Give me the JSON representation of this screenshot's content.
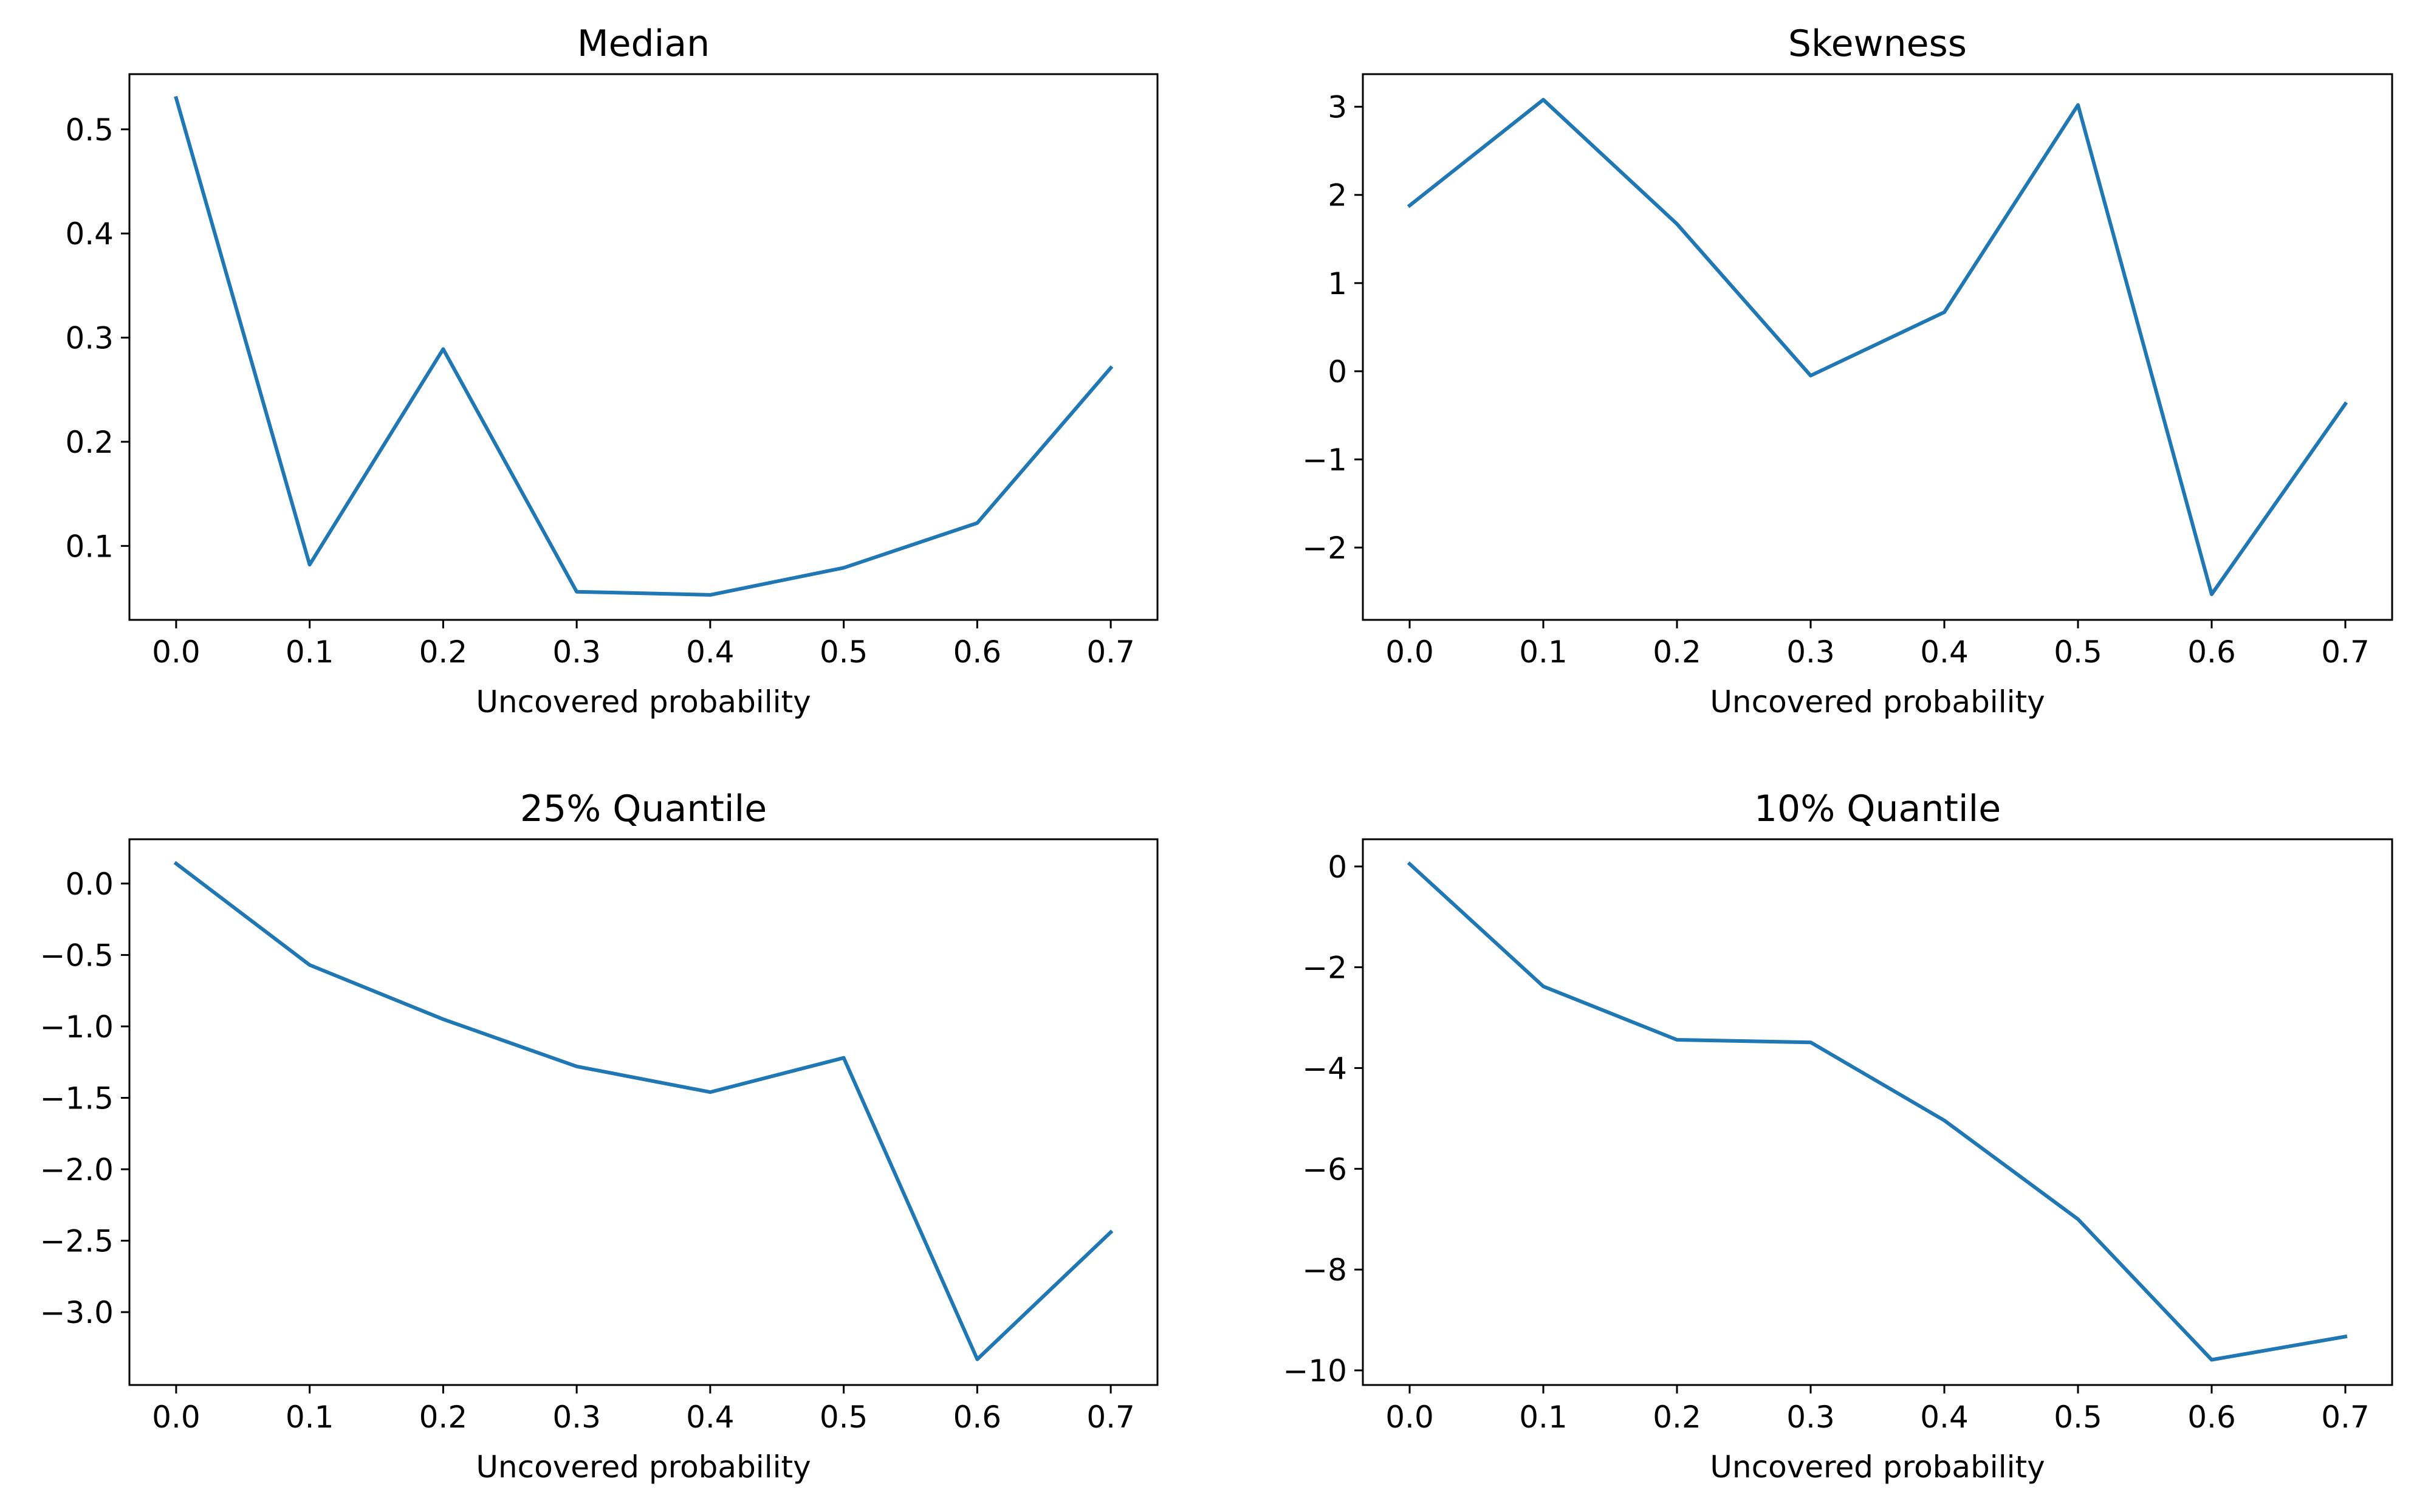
{
  "colors": {
    "line": "#1f77b4",
    "axes": "#000000",
    "background": "#ffffff"
  },
  "chart_data": [
    {
      "type": "line",
      "title": "Median",
      "xlabel": "Uncovered probability",
      "ylabel": "",
      "grid": false,
      "x": [
        0.0,
        0.1,
        0.2,
        0.3,
        0.4,
        0.5,
        0.6,
        0.7
      ],
      "x_ticks": [
        "0.0",
        "0.1",
        "0.2",
        "0.3",
        "0.4",
        "0.5",
        "0.6",
        "0.7"
      ],
      "xlim": [
        -0.035,
        0.735
      ],
      "y_ticks": [
        "0.1",
        "0.2",
        "0.3",
        "0.4",
        "0.5"
      ],
      "ylim": [
        0.029,
        0.553
      ],
      "series": [
        {
          "values": [
            0.53,
            0.082,
            0.289,
            0.056,
            0.053,
            0.079,
            0.122,
            0.271
          ]
        }
      ]
    },
    {
      "type": "line",
      "title": "Skewness",
      "xlabel": "Uncovered probability",
      "ylabel": "",
      "grid": false,
      "x": [
        0.0,
        0.1,
        0.2,
        0.3,
        0.4,
        0.5,
        0.6,
        0.7
      ],
      "x_ticks": [
        "0.0",
        "0.1",
        "0.2",
        "0.3",
        "0.4",
        "0.5",
        "0.6",
        "0.7"
      ],
      "xlim": [
        -0.035,
        0.735
      ],
      "y_ticks": [
        "−2",
        "−1",
        "0",
        "1",
        "2",
        "3"
      ],
      "ylim": [
        -2.82,
        3.37
      ],
      "series": [
        {
          "values": [
            1.88,
            3.08,
            1.67,
            -0.05,
            0.67,
            3.02,
            -2.53,
            -0.37
          ]
        }
      ]
    },
    {
      "type": "line",
      "title": "25% Quantile",
      "xlabel": "Uncovered probability",
      "ylabel": "",
      "grid": false,
      "x": [
        0.0,
        0.1,
        0.2,
        0.3,
        0.4,
        0.5,
        0.6,
        0.7
      ],
      "x_ticks": [
        "0.0",
        "0.1",
        "0.2",
        "0.3",
        "0.4",
        "0.5",
        "0.6",
        "0.7"
      ],
      "xlim": [
        -0.035,
        0.735
      ],
      "y_ticks": [
        "−3.0",
        "−2.5",
        "−2.0",
        "−1.5",
        "−1.0",
        "−0.5",
        "0.0"
      ],
      "ylim": [
        -3.51,
        0.31
      ],
      "series": [
        {
          "values": [
            0.14,
            -0.57,
            -0.95,
            -1.28,
            -1.46,
            -1.22,
            -3.33,
            -2.44
          ]
        }
      ]
    },
    {
      "type": "line",
      "title": "10% Quantile",
      "xlabel": "Uncovered probability",
      "ylabel": "",
      "grid": false,
      "x": [
        0.0,
        0.1,
        0.2,
        0.3,
        0.4,
        0.5,
        0.6,
        0.7
      ],
      "x_ticks": [
        "0.0",
        "0.1",
        "0.2",
        "0.3",
        "0.4",
        "0.5",
        "0.6",
        "0.7"
      ],
      "xlim": [
        -0.035,
        0.735
      ],
      "y_ticks": [
        "−10",
        "−8",
        "−6",
        "−4",
        "−2",
        "0"
      ],
      "ylim": [
        -10.29,
        0.54
      ],
      "series": [
        {
          "values": [
            0.05,
            -2.38,
            -3.44,
            -3.49,
            -5.04,
            -7.0,
            -9.79,
            -9.33
          ]
        }
      ]
    }
  ]
}
